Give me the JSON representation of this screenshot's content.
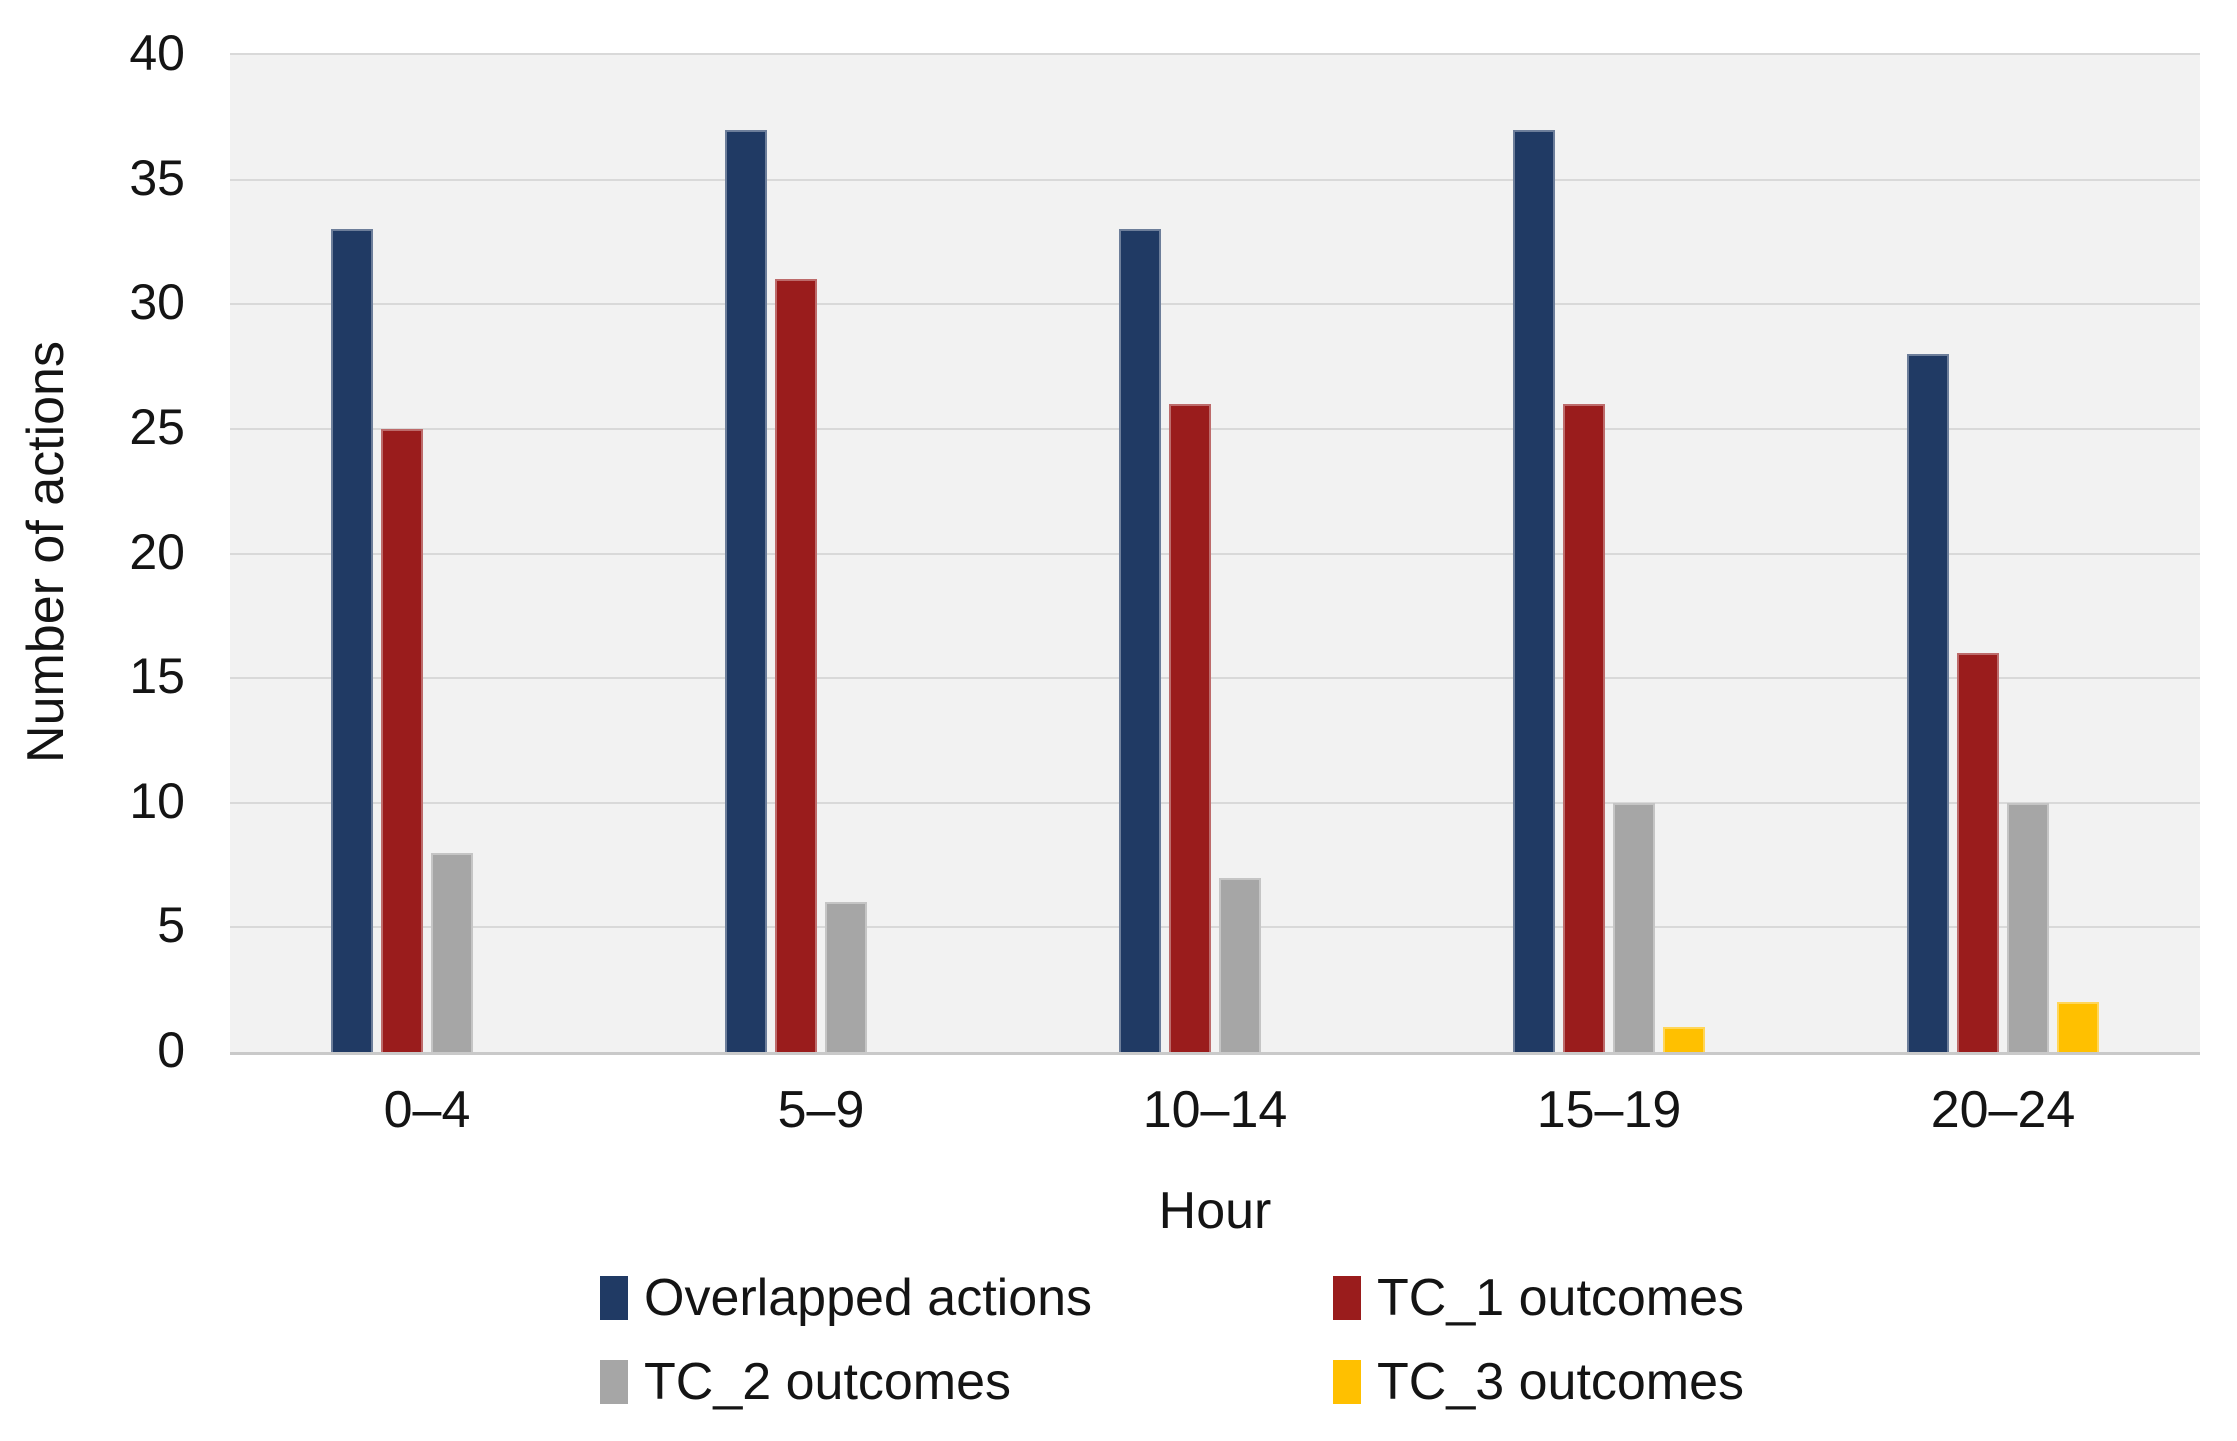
{
  "figure": {
    "background": "#FFFFFF",
    "plot_background": "#F2F2F2",
    "gridline_color": "#D9D9D9",
    "axis_line_color": "#C9C9C9",
    "text_color": "#141414"
  },
  "chart_data": {
    "type": "bar",
    "title": "",
    "xlabel": "Hour",
    "ylabel": "Number of actions",
    "categories": [
      "0–4",
      "5–9",
      "10–14",
      "15–19",
      "20–24"
    ],
    "series": [
      {
        "name": "Overlapped actions",
        "color": "#203A64",
        "values": [
          33,
          37,
          33,
          37,
          28
        ]
      },
      {
        "name": "TC_1 outcomes",
        "color": "#9A1C1C",
        "values": [
          25,
          31,
          26,
          26,
          16
        ]
      },
      {
        "name": "TC_2 outcomes",
        "color": "#A6A6A6",
        "values": [
          8,
          6,
          7,
          10,
          10
        ]
      },
      {
        "name": "TC_3 outcomes",
        "color": "#FFC000",
        "values": [
          0,
          0,
          0,
          1,
          2
        ]
      }
    ],
    "ylim": [
      0,
      40
    ],
    "yticks": [
      0,
      5,
      10,
      15,
      20,
      25,
      30,
      35,
      40
    ],
    "grid": "horizontal",
    "legend_position": "bottom"
  }
}
